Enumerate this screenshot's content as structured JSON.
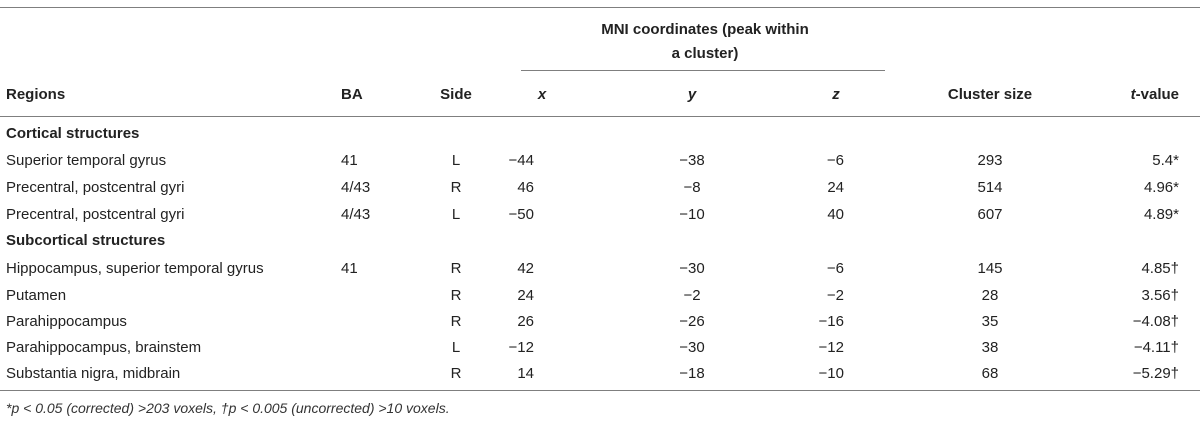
{
  "header": {
    "mni_title_line1": "MNI coordinates (peak within",
    "mni_title_line2": "a cluster)",
    "regions": "Regions",
    "ba": "BA",
    "side": "Side",
    "x": "x",
    "y": "y",
    "z": "z",
    "cluster_size": "Cluster size",
    "t_value_italic": "t",
    "t_value_rest": "-value"
  },
  "sections": [
    {
      "title": "Cortical structures",
      "rows": [
        {
          "region": "Superior temporal gyrus",
          "ba": "41",
          "side": "L",
          "x": "−44",
          "y": "−38",
          "z": "−6",
          "cluster": "293",
          "t": "5.4*"
        },
        {
          "region": "Precentral, postcentral gyri",
          "ba": "4/43",
          "side": "R",
          "x": "46",
          "y": "−8",
          "z": "24",
          "cluster": "514",
          "t": "4.96*"
        },
        {
          "region": "Precentral, postcentral gyri",
          "ba": "4/43",
          "side": "L",
          "x": "−50",
          "y": "−10",
          "z": "40",
          "cluster": "607",
          "t": "4.89*"
        }
      ]
    },
    {
      "title": "Subcortical structures",
      "rows": [
        {
          "region": "Hippocampus, superior temporal gyrus",
          "ba": "41",
          "side": "R",
          "x": "42",
          "y": "−30",
          "z": "−6",
          "cluster": "145",
          "t": "4.85†"
        },
        {
          "region": "Putamen",
          "ba": "",
          "side": "R",
          "x": "24",
          "y": "−2",
          "z": "−2",
          "cluster": "28",
          "t": "3.56†"
        },
        {
          "region": "Parahippocampus",
          "ba": "",
          "side": "R",
          "x": "26",
          "y": "−26",
          "z": "−16",
          "cluster": "35",
          "t": "−4.08†"
        },
        {
          "region": "Parahippocampus, brainstem",
          "ba": "",
          "side": "L",
          "x": "−12",
          "y": "−30",
          "z": "−12",
          "cluster": "38",
          "t": "−4.11†"
        },
        {
          "region": "Substantia nigra, midbrain",
          "ba": "",
          "side": "R",
          "x": "14",
          "y": "−18",
          "z": "−10",
          "cluster": "68",
          "t": "−5.29†"
        }
      ]
    }
  ],
  "footnote": "*p < 0.05 (corrected) >203 voxels, †p < 0.005 (uncorrected) >10 voxels."
}
